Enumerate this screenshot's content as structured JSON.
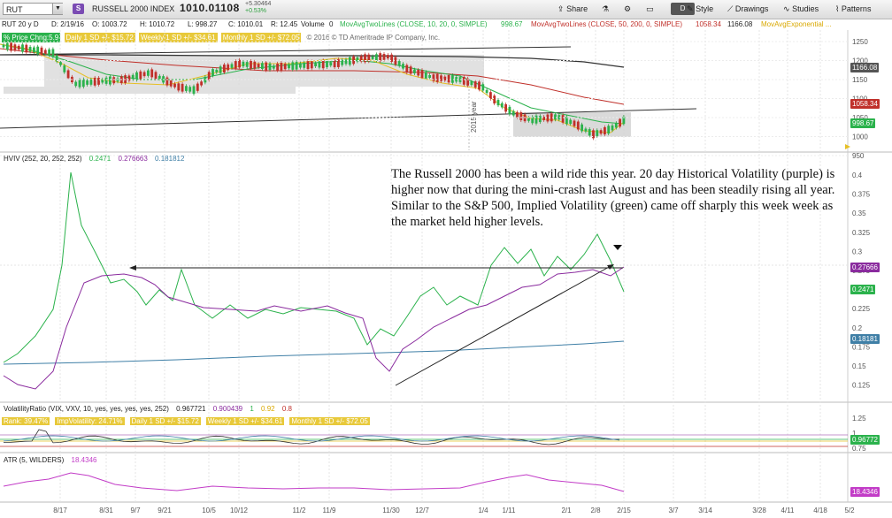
{
  "toolbar": {
    "symbol": "RUT",
    "symbol_badge": "S",
    "index_name": "RUSSELL 2000 INDEX",
    "last_price": "1010.01108",
    "change_abs": "+5.30464",
    "change_pct": "+0.53%",
    "share": "Share",
    "period": "D",
    "style": "Style",
    "drawings": "Drawings",
    "studies": "Studies",
    "patterns": "Patterns"
  },
  "infobar": {
    "agg": "RUT 20 y D",
    "date": "D: 2/19/16",
    "open": "O: 1003.72",
    "high": "H: 1010.72",
    "low": "L: 998.27",
    "close": "C: 1010.01",
    "range": "R: 12.45",
    "volume": "Volume",
    "volume_val": "0",
    "ma1": "MovAvgTwoLines (CLOSE, 10, 20, 0, SIMPLE)",
    "ma1_val": "998.67",
    "ma2": "MovAvgTwoLines (CLOSE, 50, 200, 0, SIMPLE)",
    "ma2_val": "1058.34",
    "ma2_val2": "1166.08",
    "ma3": "MovAvgExponential ..."
  },
  "row2": {
    "price_chg": "% Price Chng:5.9",
    "daily": "Daily 1 SD +/- $15.72",
    "weekly": "Weekly 1 SD +/- $34.61",
    "monthly": "Monthly 1 SD +/- $72.05",
    "copyright": "© 2016 © TD Ameritrade IP Company, Inc."
  },
  "price_axis": [
    "1250",
    "1200",
    "1150",
    "1100",
    "1050",
    "1000",
    "950"
  ],
  "price_tags": {
    "ma200": "1166.08",
    "ma50": "1058.34",
    "ma10": "998.67"
  },
  "hv_pane": {
    "title": "HVIV (252, 20, 252, 252)",
    "v1": "0.2471",
    "v2": "0.276663",
    "v3": "0.181812",
    "axis": [
      "0.4",
      "0.375",
      "0.35",
      "0.325",
      "0.3",
      "0.275",
      "0.25",
      "0.225",
      "0.2",
      "0.175",
      "0.15",
      "0.125"
    ],
    "tag_hv": "0.27666",
    "tag_iv": "0.2471",
    "tag_base": "0.18181"
  },
  "annotation": "The Russell 2000 has been a wild ride this year.  20 day Historical Volatility (purple) is higher now that during the mini-crash last August and has been steadily rising all year.  Similar to the S&P 500, Implied Volatility (green) came off sharply this week week as the market held higher levels.",
  "vr_pane": {
    "title": "VolatilityRatio (VIX, VXV, 10, yes, yes, yes, yes, 252)",
    "v1": "0.967721",
    "v2": "0.900439",
    "v3": "1",
    "v4": "0.92",
    "v5": "0.8",
    "rank": "Rank: 39.47%",
    "impvol": "ImpVolatility: 24.71%",
    "daily": "Daily 1 SD +/- $15.72",
    "weekly": "Weekly 1 SD +/- $34.61",
    "monthly": "Monthly 1 SD +/- $72.05",
    "axis": [
      "1.25",
      "1",
      "0.75"
    ],
    "tag": "0.96772"
  },
  "atr_pane": {
    "title": "ATR (5, WILDERS)",
    "value": "18.4346",
    "tag": "18.4346"
  },
  "time_axis": [
    "8/17",
    "8/31",
    "9/7",
    "9/21",
    "10/5",
    "10/12",
    "11/2",
    "11/9",
    "11/30",
    "12/7",
    "1/4",
    "1/11",
    "2/1",
    "2/8",
    "2/15",
    "3/7",
    "3/14",
    "3/28",
    "4/11",
    "4/18",
    "5/2"
  ],
  "year_label": "2015 year",
  "colors": {
    "green": "#2bb24c",
    "purple": "#8a2b9e",
    "blue": "#3f7fa6",
    "red": "#c0302a",
    "black": "#333333",
    "yellow": "#e6c026",
    "atr": "#c23cc7"
  }
}
